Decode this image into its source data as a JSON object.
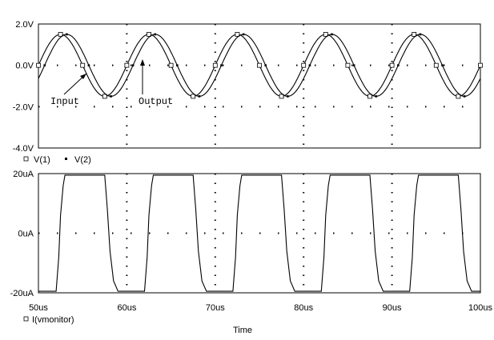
{
  "chart_data": [
    {
      "type": "line",
      "title": "",
      "xlabel": "",
      "ylabel": "",
      "xlim": [
        50,
        100
      ],
      "ylim": [
        -4.0,
        2.0
      ],
      "x_unit": "us",
      "y_ticks": [
        {
          "v": 2.0,
          "label": "2.0V"
        },
        {
          "v": 0.0,
          "label": "0.0V"
        },
        {
          "v": -2.0,
          "label": "-2.0V"
        },
        {
          "v": -4.0,
          "label": "-4.0V"
        }
      ],
      "grid": "dotted",
      "series": [
        {
          "name": "V(1)",
          "marker": "square",
          "kind": "sine",
          "amplitude": 1.5,
          "period_us": 10,
          "x": [
            50.0,
            52.5,
            55.0,
            57.5,
            60.0,
            62.5,
            65.0,
            67.5,
            70.0,
            72.5,
            75.0,
            77.5,
            80.0,
            82.5,
            85.0,
            87.5,
            90.0,
            92.5,
            95.0,
            97.5,
            100.0
          ],
          "y": [
            0.0,
            1.5,
            0.0,
            -1.5,
            0.0,
            1.5,
            0.0,
            -1.5,
            0.0,
            1.5,
            0.0,
            -1.5,
            0.0,
            1.5,
            0.0,
            -1.5,
            0.0,
            1.5,
            0.0,
            -1.5,
            0.0
          ]
        },
        {
          "name": "V(2)",
          "marker": "dot",
          "kind": "sine",
          "amplitude": 1.5,
          "period_us": 10,
          "delay_us": 0.7,
          "x": [
            50.7,
            53.2,
            55.7,
            58.2,
            60.7,
            63.2,
            65.7,
            68.2,
            70.7,
            73.2,
            75.7,
            78.2,
            80.7,
            83.2,
            85.7,
            88.2,
            90.7,
            93.2,
            95.7,
            98.2
          ],
          "y": [
            0.0,
            1.5,
            0.0,
            -1.5,
            0.0,
            1.5,
            0.0,
            -1.5,
            0.0,
            1.5,
            0.0,
            -1.5,
            0.0,
            1.5,
            0.0,
            -1.5,
            0.0,
            1.5,
            0.0,
            -1.5
          ]
        }
      ],
      "annotations": [
        {
          "text": "Input",
          "target_series": "V(1)"
        },
        {
          "text": "Output",
          "target_series": "V(2)"
        }
      ]
    },
    {
      "type": "line",
      "title": "",
      "xlabel": "Time",
      "ylabel": "",
      "xlim": [
        50,
        100
      ],
      "ylim": [
        -20,
        20
      ],
      "x_unit": "us",
      "y_ticks": [
        {
          "v": 20,
          "label": "20uA"
        },
        {
          "v": 0,
          "label": "0uA"
        },
        {
          "v": -20,
          "label": "-20uA"
        }
      ],
      "x_ticks": [
        {
          "v": 50,
          "label": "50us"
        },
        {
          "v": 60,
          "label": "60us"
        },
        {
          "v": 70,
          "label": "70us"
        },
        {
          "v": 80,
          "label": "80us"
        },
        {
          "v": 90,
          "label": "90us"
        },
        {
          "v": 100,
          "label": "100us"
        }
      ],
      "grid": "dotted",
      "series": [
        {
          "name": "I(vmonitor)",
          "marker": "square",
          "x": [
            50.0,
            52.0,
            52.3,
            52.5,
            52.8,
            53.0,
            57.5,
            57.8,
            58.1,
            58.5,
            59.0,
            62.0,
            62.3,
            62.5,
            62.8,
            63.0,
            67.5,
            67.8,
            68.1,
            68.5,
            69.0,
            72.0,
            72.3,
            72.5,
            72.8,
            73.0,
            77.5,
            77.8,
            78.1,
            78.5,
            79.0,
            82.0,
            82.3,
            82.5,
            82.8,
            83.0,
            87.5,
            87.8,
            88.1,
            88.5,
            89.0,
            92.0,
            92.3,
            92.5,
            92.8,
            93.0,
            97.5,
            97.8,
            98.1,
            98.5,
            99.0,
            100.0
          ],
          "y": [
            -19.5,
            -19.5,
            -8,
            6,
            16,
            19.5,
            19.5,
            8,
            -6,
            -16,
            -19.5,
            -19.5,
            -8,
            6,
            16,
            19.5,
            19.5,
            8,
            -6,
            -16,
            -19.5,
            -19.5,
            -8,
            6,
            16,
            19.5,
            19.5,
            8,
            -6,
            -16,
            -19.5,
            -19.5,
            -8,
            6,
            16,
            19.5,
            19.5,
            8,
            -6,
            -16,
            -19.5,
            -19.5,
            -8,
            6,
            16,
            19.5,
            19.5,
            8,
            -6,
            -16,
            -19.5,
            -19.5
          ]
        }
      ]
    }
  ]
}
